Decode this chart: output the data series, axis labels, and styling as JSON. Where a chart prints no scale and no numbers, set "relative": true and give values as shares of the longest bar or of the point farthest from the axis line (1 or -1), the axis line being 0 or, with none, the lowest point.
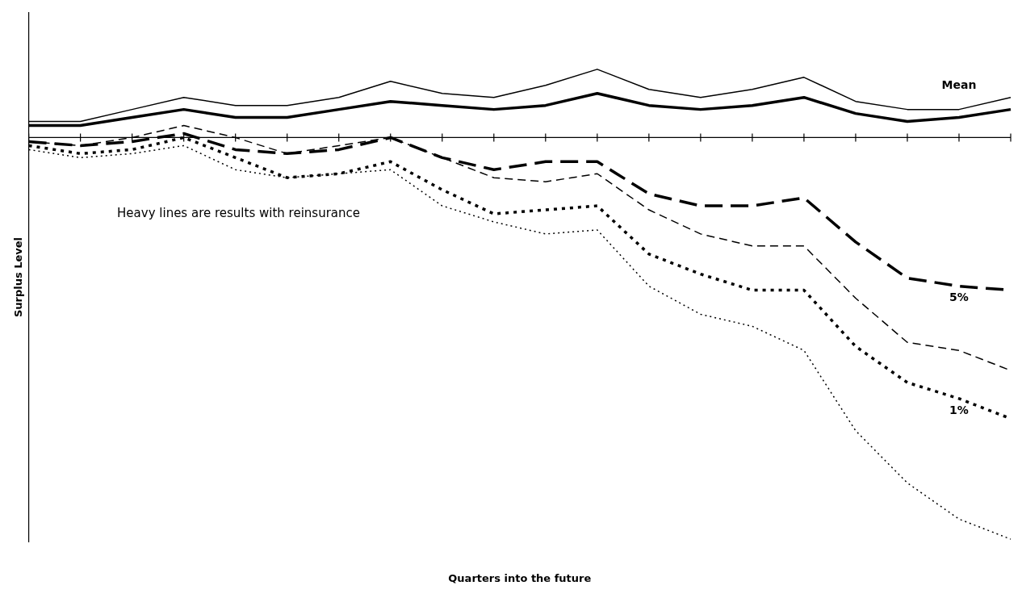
{
  "chart_data": {
    "type": "line",
    "relative": true,
    "xlabel": "Quarters into the future",
    "ylabel": "Surplus Level",
    "annotations": [
      "Heavy lines are results with reinsurance"
    ],
    "categories": [
      null,
      null,
      null,
      null,
      null,
      null,
      null,
      null,
      null,
      null,
      null,
      null,
      null,
      null,
      null,
      null,
      null,
      null,
      null,
      null
    ],
    "series": [
      {
        "name": "Mean",
        "color": "#000000",
        "line_style": "solid",
        "values": [
          0.04,
          0.04,
          0.07,
          0.1,
          0.08,
          0.08,
          0.1,
          0.14,
          0.11,
          0.1,
          0.13,
          0.17,
          0.12,
          0.1,
          0.12,
          0.15,
          0.09,
          0.07,
          0.07,
          0.1
        ]
      },
      {
        "color": "#000000",
        "line_style": "solid",
        "values": [
          0.03,
          0.03,
          0.05,
          0.07,
          0.05,
          0.05,
          0.07,
          0.09,
          0.08,
          0.07,
          0.08,
          0.11,
          0.08,
          0.07,
          0.08,
          0.1,
          0.06,
          0.04,
          0.05,
          0.07
        ]
      },
      {
        "name": "5%",
        "color": "#000000",
        "line_style": "dashed",
        "values": [
          -0.01,
          -0.02,
          -0.01,
          0.01,
          -0.03,
          -0.04,
          -0.03,
          0,
          -0.05,
          -0.08,
          -0.06,
          -0.06,
          -0.14,
          -0.17,
          -0.17,
          -0.15,
          -0.26,
          -0.35,
          -0.37,
          -0.38
        ]
      },
      {
        "color": "#000000",
        "line_style": "dashed",
        "values": [
          -0.01,
          -0.02,
          0,
          0.03,
          0,
          -0.04,
          -0.02,
          0,
          -0.05,
          -0.1,
          -0.11,
          -0.09,
          -0.18,
          -0.24,
          -0.27,
          -0.27,
          -0.4,
          -0.51,
          -0.53,
          -0.58
        ]
      },
      {
        "name": "1%",
        "color": "#000000",
        "line_style": "dotted",
        "values": [
          -0.02,
          -0.04,
          -0.03,
          0,
          -0.05,
          -0.1,
          -0.09,
          -0.06,
          -0.13,
          -0.19,
          -0.18,
          -0.17,
          -0.29,
          -0.34,
          -0.38,
          -0.38,
          -0.52,
          -0.61,
          -0.65,
          -0.7
        ]
      },
      {
        "color": "#000000",
        "line_style": "dotted",
        "values": [
          -0.03,
          -0.05,
          -0.04,
          -0.02,
          -0.08,
          -0.1,
          -0.09,
          -0.08,
          -0.17,
          -0.21,
          -0.24,
          -0.23,
          -0.37,
          -0.44,
          -0.47,
          -0.53,
          -0.73,
          -0.86,
          -0.95,
          -1
        ]
      }
    ]
  }
}
